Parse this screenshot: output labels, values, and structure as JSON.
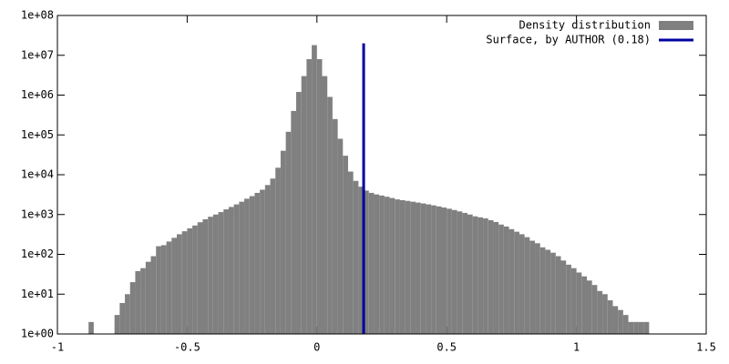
{
  "chart_data": {
    "type": "histogram",
    "log_y": true,
    "legend": "top-right",
    "bins": [
      -0.88,
      -0.86,
      -0.84,
      -0.82,
      -0.8,
      -0.78,
      -0.76,
      -0.74,
      -0.72,
      -0.7,
      -0.68,
      -0.66,
      -0.64,
      -0.62,
      -0.6,
      -0.58,
      -0.56,
      -0.54,
      -0.52,
      -0.5,
      -0.48,
      -0.46,
      -0.44,
      -0.42,
      -0.4,
      -0.38,
      -0.36,
      -0.34,
      -0.32,
      -0.3,
      -0.28,
      -0.26,
      -0.24,
      -0.22,
      -0.2,
      -0.18,
      -0.16,
      -0.14,
      -0.12,
      -0.1,
      -0.08,
      -0.06,
      -0.04,
      -0.02,
      0,
      0.02,
      0.04,
      0.06,
      0.08,
      0.1,
      0.12,
      0.14,
      0.16,
      0.18,
      0.2,
      0.22,
      0.24,
      0.26,
      0.28,
      0.3,
      0.32,
      0.34,
      0.36,
      0.38,
      0.4,
      0.42,
      0.44,
      0.46,
      0.48,
      0.5,
      0.52,
      0.54,
      0.56,
      0.58,
      0.6,
      0.62,
      0.64,
      0.66,
      0.68,
      0.7,
      0.72,
      0.74,
      0.76,
      0.78,
      0.8,
      0.82,
      0.84,
      0.86,
      0.88,
      0.9,
      0.92,
      0.94,
      0.96,
      0.98,
      1,
      1.02,
      1.04,
      1.06,
      1.08,
      1.1,
      1.12,
      1.14,
      1.16,
      1.18,
      1.2,
      1.22,
      1.24,
      1.26,
      1.28
    ],
    "series": [
      {
        "name": "Density distribution",
        "type": "histogram",
        "color": "#808080",
        "values": [
          2,
          null,
          null,
          null,
          null,
          3,
          6,
          10,
          20,
          38,
          45,
          65,
          90,
          160,
          170,
          210,
          260,
          320,
          380,
          450,
          530,
          640,
          760,
          880,
          1000,
          1150,
          1350,
          1550,
          1800,
          2100,
          2500,
          2900,
          3500,
          4200,
          5500,
          8000,
          15000,
          40000,
          120000,
          400000,
          1200000,
          3000000,
          8000000,
          18000000,
          8000000,
          3000000,
          900000,
          250000,
          80000,
          30000,
          12000,
          7000,
          5000,
          4000,
          3500,
          3200,
          3000,
          2800,
          2600,
          2400,
          2300,
          2200,
          2100,
          2000,
          1900,
          1800,
          1700,
          1600,
          1500,
          1400,
          1300,
          1200,
          1100,
          1000,
          900,
          850,
          800,
          720,
          650,
          560,
          500,
          430,
          370,
          320,
          270,
          220,
          190,
          150,
          130,
          110,
          90,
          70,
          55,
          45,
          35,
          28,
          22,
          17,
          12,
          10,
          7,
          5,
          4,
          3,
          2,
          2,
          2,
          2
        ]
      },
      {
        "name": "Surface, by AUTHOR (0.18)",
        "type": "line",
        "color": "#0000a0",
        "x": [
          0.18,
          0.18
        ],
        "values": [
          1,
          20000000
        ]
      }
    ],
    "xlim": [
      -1,
      1.5
    ],
    "xticks": [
      -1,
      -0.5,
      0,
      0.5,
      1,
      1.5
    ],
    "ylim": [
      1,
      100000000
    ],
    "yticks": [
      {
        "value": 1,
        "label": "1e+00"
      },
      {
        "value": 10,
        "label": "1e+01"
      },
      {
        "value": 100,
        "label": "1e+02"
      },
      {
        "value": 1000,
        "label": "1e+03"
      },
      {
        "value": 10000,
        "label": "1e+04"
      },
      {
        "value": 100000,
        "label": "1e+05"
      },
      {
        "value": 1000000,
        "label": "1e+06"
      },
      {
        "value": 10000000,
        "label": "1e+07"
      },
      {
        "value": 100000000,
        "label": "1e+08"
      }
    ]
  }
}
